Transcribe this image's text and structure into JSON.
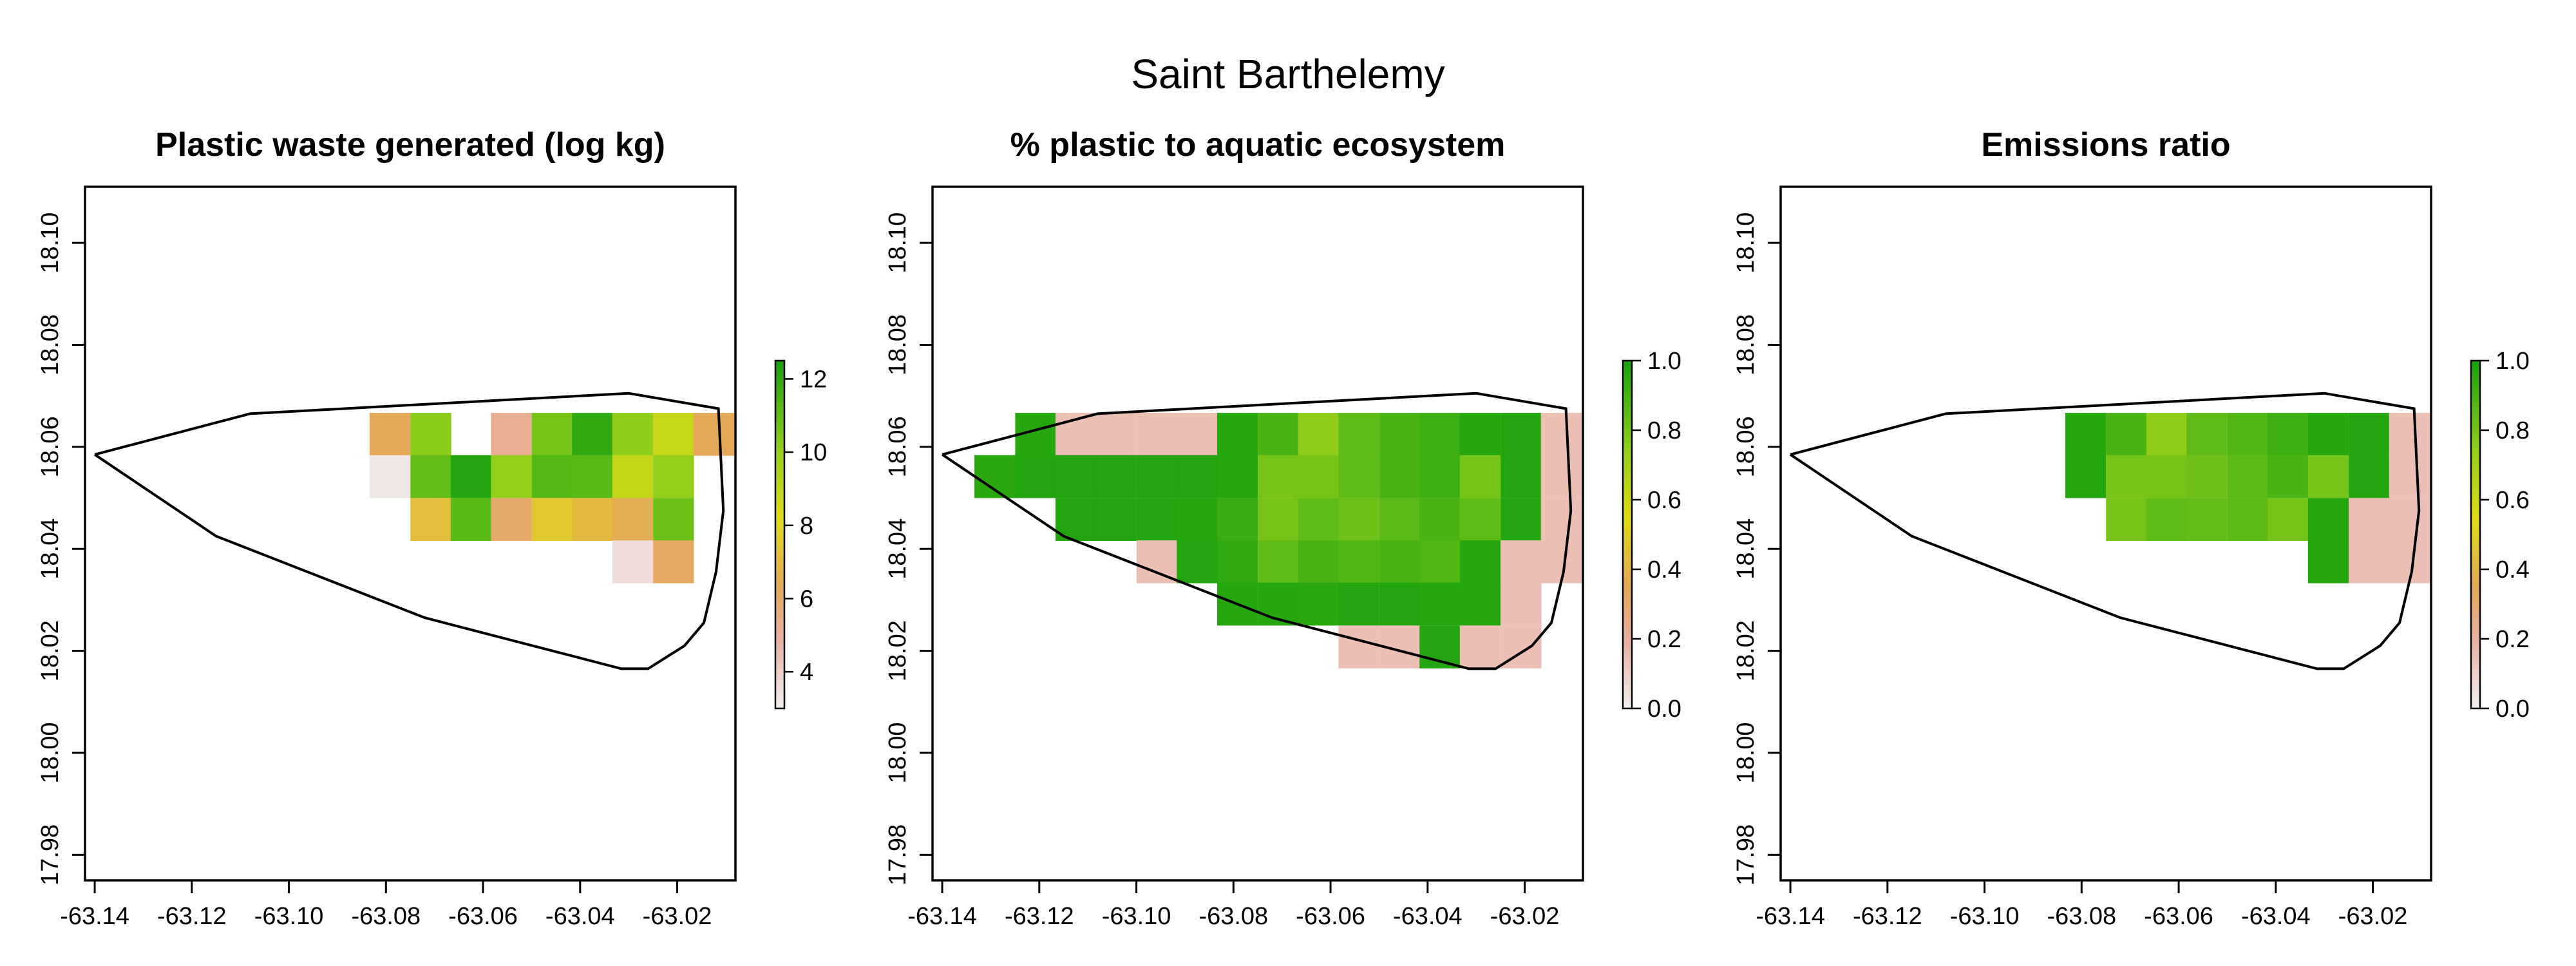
{
  "figure_title": "Saint Barthelemy",
  "colors": {
    "orange": "#E3A857",
    "frame": "#000000"
  },
  "chart_data": [
    {
      "type": "heatmap",
      "title": "Plastic waste generated (log kg)",
      "x_ticks": [
        "-63.14",
        "-63.12",
        "-63.10",
        "-63.08",
        "-63.06",
        "-63.04",
        "-63.02"
      ],
      "y_ticks": [
        "17.98",
        "18.00",
        "18.02",
        "18.04",
        "18.06",
        "18.08",
        "18.10"
      ],
      "xlim": [
        -63.142,
        -63.008
      ],
      "ylim": [
        17.975,
        18.111
      ],
      "cell_size": [
        0.00833,
        0.00833
      ],
      "cell_value_range": [
        3,
        12.5
      ],
      "cells": [
        {
          "x": -63.0792,
          "y": 18.0625,
          "v": 6.3
        },
        {
          "x": -63.0708,
          "y": 18.0625,
          "v": 10.2
        },
        {
          "x": -63.0542,
          "y": 18.0625,
          "v": 5.2
        },
        {
          "x": -63.0458,
          "y": 18.0625,
          "v": 10.6
        },
        {
          "x": -63.0375,
          "y": 18.0625,
          "v": 12.0
        },
        {
          "x": -63.0292,
          "y": 18.0625,
          "v": 10.1
        },
        {
          "x": -63.0208,
          "y": 18.0625,
          "v": 8.8
        },
        {
          "x": -63.0125,
          "y": 18.0625,
          "v": 6.3
        },
        {
          "x": -63.0792,
          "y": 18.0542,
          "v": 3.3
        },
        {
          "x": -63.0708,
          "y": 18.0542,
          "v": 11.0
        },
        {
          "x": -63.0625,
          "y": 18.0542,
          "v": 12.3
        },
        {
          "x": -63.0542,
          "y": 18.0542,
          "v": 10.0
        },
        {
          "x": -63.0458,
          "y": 18.0542,
          "v": 11.3
        },
        {
          "x": -63.0375,
          "y": 18.0542,
          "v": 11.2
        },
        {
          "x": -63.0292,
          "y": 18.0542,
          "v": 8.9
        },
        {
          "x": -63.0208,
          "y": 18.0542,
          "v": 10.0
        },
        {
          "x": -63.0708,
          "y": 18.0458,
          "v": 7.2
        },
        {
          "x": -63.0625,
          "y": 18.0458,
          "v": 11.2
        },
        {
          "x": -63.0542,
          "y": 18.0458,
          "v": 6.0
        },
        {
          "x": -63.0458,
          "y": 18.0458,
          "v": 7.5
        },
        {
          "x": -63.0375,
          "y": 18.0458,
          "v": 7.0
        },
        {
          "x": -63.0292,
          "y": 18.0458,
          "v": 6.5
        },
        {
          "x": -63.0208,
          "y": 18.0458,
          "v": 10.8
        },
        {
          "x": -63.0292,
          "y": 18.0375,
          "v": 3.6
        },
        {
          "x": -63.0208,
          "y": 18.0375,
          "v": 6.1
        }
      ],
      "legend": {
        "ticks": [
          "4",
          "6",
          "8",
          "10",
          "12"
        ],
        "range": [
          3,
          12.5
        ]
      }
    },
    {
      "type": "heatmap",
      "title": "% plastic to aquatic ecosystem",
      "x_ticks": [
        "-63.14",
        "-63.12",
        "-63.10",
        "-63.08",
        "-63.06",
        "-63.04",
        "-63.02"
      ],
      "y_ticks": [
        "17.98",
        "18.00",
        "18.02",
        "18.04",
        "18.06",
        "18.08",
        "18.10"
      ],
      "xlim": [
        -63.142,
        -63.008
      ],
      "ylim": [
        17.975,
        18.111
      ],
      "cell_size": [
        0.00833,
        0.00833
      ],
      "cell_value_range": [
        0,
        1
      ],
      "cells": [
        {
          "x": -63.1208,
          "y": 18.0625,
          "v": 0.97
        },
        {
          "x": -63.1125,
          "y": 18.0625,
          "v": 0.15
        },
        {
          "x": -63.1042,
          "y": 18.0625,
          "v": 0.15
        },
        {
          "x": -63.0958,
          "y": 18.0625,
          "v": 0.15
        },
        {
          "x": -63.0875,
          "y": 18.0625,
          "v": 0.15
        },
        {
          "x": -63.0792,
          "y": 18.0625,
          "v": 0.97
        },
        {
          "x": -63.0708,
          "y": 18.0625,
          "v": 0.9
        },
        {
          "x": -63.0625,
          "y": 18.0625,
          "v": 0.75
        },
        {
          "x": -63.0542,
          "y": 18.0625,
          "v": 0.85
        },
        {
          "x": -63.0458,
          "y": 18.0625,
          "v": 0.9
        },
        {
          "x": -63.0375,
          "y": 18.0625,
          "v": 0.92
        },
        {
          "x": -63.0292,
          "y": 18.0625,
          "v": 0.97
        },
        {
          "x": -63.0208,
          "y": 18.0625,
          "v": 0.98
        },
        {
          "x": -63.0125,
          "y": 18.0625,
          "v": 0.15
        },
        {
          "x": -63.1292,
          "y": 18.0542,
          "v": 0.96
        },
        {
          "x": -63.1208,
          "y": 18.0542,
          "v": 0.98
        },
        {
          "x": -63.1125,
          "y": 18.0542,
          "v": 0.98
        },
        {
          "x": -63.1042,
          "y": 18.0542,
          "v": 0.98
        },
        {
          "x": -63.0958,
          "y": 18.0542,
          "v": 0.98
        },
        {
          "x": -63.0875,
          "y": 18.0542,
          "v": 0.98
        },
        {
          "x": -63.0792,
          "y": 18.0542,
          "v": 0.97
        },
        {
          "x": -63.0708,
          "y": 18.0542,
          "v": 0.8
        },
        {
          "x": -63.0625,
          "y": 18.0542,
          "v": 0.8
        },
        {
          "x": -63.0542,
          "y": 18.0542,
          "v": 0.85
        },
        {
          "x": -63.0458,
          "y": 18.0542,
          "v": 0.9
        },
        {
          "x": -63.0375,
          "y": 18.0542,
          "v": 0.92
        },
        {
          "x": -63.0292,
          "y": 18.0542,
          "v": 0.8
        },
        {
          "x": -63.0208,
          "y": 18.0542,
          "v": 0.98
        },
        {
          "x": -63.0125,
          "y": 18.0542,
          "v": 0.15
        },
        {
          "x": -63.1125,
          "y": 18.0458,
          "v": 0.98
        },
        {
          "x": -63.1042,
          "y": 18.0458,
          "v": 0.98
        },
        {
          "x": -63.0958,
          "y": 18.0458,
          "v": 0.98
        },
        {
          "x": -63.0875,
          "y": 18.0458,
          "v": 0.97
        },
        {
          "x": -63.0792,
          "y": 18.0458,
          "v": 0.93
        },
        {
          "x": -63.0708,
          "y": 18.0458,
          "v": 0.8
        },
        {
          "x": -63.0625,
          "y": 18.0458,
          "v": 0.85
        },
        {
          "x": -63.0542,
          "y": 18.0458,
          "v": 0.82
        },
        {
          "x": -63.0458,
          "y": 18.0458,
          "v": 0.86
        },
        {
          "x": -63.0375,
          "y": 18.0458,
          "v": 0.9
        },
        {
          "x": -63.0292,
          "y": 18.0458,
          "v": 0.85
        },
        {
          "x": -63.0208,
          "y": 18.0458,
          "v": 0.98
        },
        {
          "x": -63.0125,
          "y": 18.0458,
          "v": 0.15
        },
        {
          "x": -63.0958,
          "y": 18.0375,
          "v": 0.15
        },
        {
          "x": -63.0875,
          "y": 18.0375,
          "v": 0.98
        },
        {
          "x": -63.0792,
          "y": 18.0375,
          "v": 0.95
        },
        {
          "x": -63.0708,
          "y": 18.0375,
          "v": 0.85
        },
        {
          "x": -63.0625,
          "y": 18.0375,
          "v": 0.9
        },
        {
          "x": -63.0542,
          "y": 18.0375,
          "v": 0.88
        },
        {
          "x": -63.0458,
          "y": 18.0375,
          "v": 0.9
        },
        {
          "x": -63.0375,
          "y": 18.0375,
          "v": 0.88
        },
        {
          "x": -63.0292,
          "y": 18.0375,
          "v": 0.97
        },
        {
          "x": -63.0208,
          "y": 18.0375,
          "v": 0.15
        },
        {
          "x": -63.0125,
          "y": 18.0375,
          "v": 0.15
        },
        {
          "x": -63.0792,
          "y": 18.0292,
          "v": 0.97
        },
        {
          "x": -63.0708,
          "y": 18.0292,
          "v": 0.97
        },
        {
          "x": -63.0625,
          "y": 18.0292,
          "v": 0.96
        },
        {
          "x": -63.0542,
          "y": 18.0292,
          "v": 0.98
        },
        {
          "x": -63.0458,
          "y": 18.0292,
          "v": 0.98
        },
        {
          "x": -63.0375,
          "y": 18.0292,
          "v": 0.97
        },
        {
          "x": -63.0292,
          "y": 18.0292,
          "v": 0.97
        },
        {
          "x": -63.0208,
          "y": 18.0292,
          "v": 0.15
        },
        {
          "x": -63.0542,
          "y": 18.0208,
          "v": 0.15
        },
        {
          "x": -63.0458,
          "y": 18.0208,
          "v": 0.15
        },
        {
          "x": -63.0375,
          "y": 18.0208,
          "v": 0.98
        },
        {
          "x": -63.0292,
          "y": 18.0208,
          "v": 0.15
        },
        {
          "x": -63.0208,
          "y": 18.0208,
          "v": 0.15
        }
      ],
      "legend": {
        "ticks": [
          "0.0",
          "0.2",
          "0.4",
          "0.6",
          "0.8",
          "1.0"
        ],
        "range": [
          0,
          1
        ]
      }
    },
    {
      "type": "heatmap",
      "title": "Emissions ratio",
      "x_ticks": [
        "-63.14",
        "-63.12",
        "-63.10",
        "-63.08",
        "-63.06",
        "-63.04",
        "-63.02"
      ],
      "y_ticks": [
        "17.98",
        "18.00",
        "18.02",
        "18.04",
        "18.06",
        "18.08",
        "18.10"
      ],
      "xlim": [
        -63.142,
        -63.008
      ],
      "ylim": [
        17.975,
        18.111
      ],
      "cell_size": [
        0.00833,
        0.00833
      ],
      "cell_value_range": [
        0,
        1
      ],
      "cells": [
        {
          "x": -63.0792,
          "y": 18.0625,
          "v": 0.97
        },
        {
          "x": -63.0708,
          "y": 18.0625,
          "v": 0.9
        },
        {
          "x": -63.0625,
          "y": 18.0625,
          "v": 0.75
        },
        {
          "x": -63.0542,
          "y": 18.0625,
          "v": 0.85
        },
        {
          "x": -63.0458,
          "y": 18.0625,
          "v": 0.88
        },
        {
          "x": -63.0375,
          "y": 18.0625,
          "v": 0.92
        },
        {
          "x": -63.0292,
          "y": 18.0625,
          "v": 0.97
        },
        {
          "x": -63.0208,
          "y": 18.0625,
          "v": 0.98
        },
        {
          "x": -63.0125,
          "y": 18.0625,
          "v": 0.15
        },
        {
          "x": -63.0792,
          "y": 18.0542,
          "v": 0.97
        },
        {
          "x": -63.0708,
          "y": 18.0542,
          "v": 0.8
        },
        {
          "x": -63.0625,
          "y": 18.0542,
          "v": 0.8
        },
        {
          "x": -63.0542,
          "y": 18.0542,
          "v": 0.82
        },
        {
          "x": -63.0458,
          "y": 18.0542,
          "v": 0.86
        },
        {
          "x": -63.0375,
          "y": 18.0542,
          "v": 0.9
        },
        {
          "x": -63.0292,
          "y": 18.0542,
          "v": 0.8
        },
        {
          "x": -63.0208,
          "y": 18.0542,
          "v": 0.98
        },
        {
          "x": -63.0125,
          "y": 18.0542,
          "v": 0.15
        },
        {
          "x": -63.0708,
          "y": 18.0458,
          "v": 0.8
        },
        {
          "x": -63.0625,
          "y": 18.0458,
          "v": 0.85
        },
        {
          "x": -63.0542,
          "y": 18.0458,
          "v": 0.84
        },
        {
          "x": -63.0458,
          "y": 18.0458,
          "v": 0.86
        },
        {
          "x": -63.0375,
          "y": 18.0458,
          "v": 0.8
        },
        {
          "x": -63.0292,
          "y": 18.0458,
          "v": 0.97
        },
        {
          "x": -63.0208,
          "y": 18.0458,
          "v": 0.15
        },
        {
          "x": -63.0125,
          "y": 18.0458,
          "v": 0.15
        },
        {
          "x": -63.0292,
          "y": 18.0375,
          "v": 0.97
        },
        {
          "x": -63.0208,
          "y": 18.0375,
          "v": 0.15
        },
        {
          "x": -63.0125,
          "y": 18.0375,
          "v": 0.15
        }
      ],
      "legend": {
        "ticks": [
          "0.0",
          "0.2",
          "0.4",
          "0.6",
          "0.8",
          "1.0"
        ],
        "range": [
          0,
          1
        ]
      }
    }
  ],
  "island_outline": [
    [
      -63.14,
      18.0585
    ],
    [
      -63.108,
      18.0665
    ],
    [
      -63.03,
      18.0705
    ],
    [
      -63.0115,
      18.0675
    ],
    [
      -63.0105,
      18.0475
    ],
    [
      -63.012,
      18.0355
    ],
    [
      -63.0145,
      18.0255
    ],
    [
      -63.0185,
      18.021
    ],
    [
      -63.026,
      18.0165
    ],
    [
      -63.0315,
      18.0165
    ],
    [
      -63.072,
      18.0265
    ],
    [
      -63.115,
      18.0425
    ],
    [
      -63.14,
      18.0585
    ]
  ]
}
